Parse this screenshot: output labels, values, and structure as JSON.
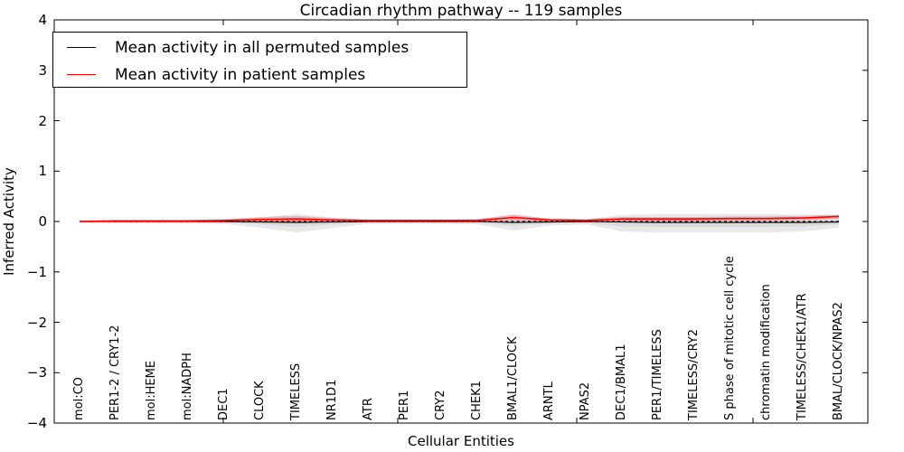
{
  "legend": {
    "items": [
      {
        "label": "Mean activity in all permuted samples",
        "color": "#000000"
      },
      {
        "label": "Mean activity in patient samples",
        "color": "#ff0000"
      }
    ]
  },
  "chart_data": {
    "type": "line",
    "title": "Circadian rhythm pathway -- 119 samples",
    "xlabel": "Cellular Entities",
    "ylabel": "Inferred Activity",
    "ylim": [
      -4,
      4
    ],
    "yticks": [
      -4,
      -3,
      -2,
      -1,
      0,
      1,
      2,
      3,
      4
    ],
    "ytick_labels": [
      "−4",
      "−3",
      "−2",
      "−1",
      "0",
      "1",
      "2",
      "3",
      "4"
    ],
    "grid": false,
    "legend_position": "upper left",
    "categories": [
      "mol:CO",
      "PER1-2 / CRY1-2",
      "mol:HEME",
      "mol:NADPH",
      "DEC1",
      "CLOCK",
      "TIMELESS",
      "NR1D1",
      "ATR",
      "PER1",
      "CRY2",
      "CHEK1",
      "BMAL1/CLOCK",
      "ARNTL",
      "NPAS2",
      "DEC1/BMAL1",
      "PER1/TIMELESS",
      "TIMELESS/CRY2",
      "S phase of mitotic cell cycle",
      "chromatin modification",
      "TIMELESS/CHEK1/ATR",
      "BMAL/CLOCK/NPAS2"
    ],
    "series": [
      {
        "name": "Mean activity in all permuted samples",
        "color": "#000000",
        "style": "solid",
        "values": [
          0.0,
          0.0,
          0.0,
          0.0,
          0.0,
          -0.01,
          -0.02,
          -0.01,
          0.0,
          0.0,
          0.0,
          0.0,
          -0.02,
          -0.01,
          0.0,
          -0.01,
          -0.02,
          -0.02,
          -0.02,
          -0.02,
          -0.02,
          -0.01
        ]
      },
      {
        "name": "Mean activity in patient samples",
        "color": "#ff0000",
        "style": "solid",
        "values": [
          0.0,
          0.01,
          0.01,
          0.01,
          0.02,
          0.04,
          0.05,
          0.03,
          0.02,
          0.02,
          0.02,
          0.02,
          0.08,
          0.03,
          0.02,
          0.05,
          0.05,
          0.05,
          0.06,
          0.06,
          0.07,
          0.1
        ]
      }
    ],
    "bands": [
      {
        "name": "permuted-envelope-outer",
        "color": "#e9e9e9",
        "upper": [
          0.02,
          0.03,
          0.03,
          0.03,
          0.04,
          0.08,
          0.15,
          0.08,
          0.04,
          0.04,
          0.04,
          0.05,
          0.13,
          0.06,
          0.05,
          0.13,
          0.15,
          0.15,
          0.15,
          0.15,
          0.14,
          0.13
        ],
        "lower": [
          -0.03,
          -0.04,
          -0.04,
          -0.04,
          -0.05,
          -0.12,
          -0.22,
          -0.13,
          -0.05,
          -0.05,
          -0.05,
          -0.06,
          -0.18,
          -0.08,
          -0.06,
          -0.2,
          -0.22,
          -0.22,
          -0.22,
          -0.22,
          -0.2,
          -0.12
        ]
      },
      {
        "name": "permuted-envelope-inner",
        "color": "#dadada",
        "upper": [
          0.01,
          0.015,
          0.015,
          0.015,
          0.02,
          0.04,
          0.07,
          0.04,
          0.02,
          0.02,
          0.02,
          0.025,
          0.06,
          0.03,
          0.025,
          0.06,
          0.07,
          0.07,
          0.07,
          0.07,
          0.07,
          0.06
        ],
        "lower": [
          -0.015,
          -0.02,
          -0.02,
          -0.02,
          -0.025,
          -0.06,
          -0.11,
          -0.06,
          -0.025,
          -0.025,
          -0.025,
          -0.03,
          -0.09,
          -0.04,
          -0.03,
          -0.1,
          -0.11,
          -0.11,
          -0.11,
          -0.11,
          -0.1,
          -0.06
        ]
      },
      {
        "name": "patient-envelope",
        "color": "#ff0000",
        "opacity": 0.22,
        "upper": [
          0.02,
          0.03,
          0.03,
          0.03,
          0.05,
          0.09,
          0.11,
          0.07,
          0.04,
          0.04,
          0.04,
          0.05,
          0.14,
          0.06,
          0.05,
          0.09,
          0.09,
          0.09,
          0.1,
          0.1,
          0.11,
          0.14
        ],
        "lower": [
          -0.02,
          -0.01,
          -0.01,
          -0.01,
          -0.01,
          -0.01,
          -0.01,
          -0.01,
          0.0,
          0.0,
          0.0,
          -0.01,
          0.02,
          0.0,
          -0.01,
          0.01,
          0.01,
          0.01,
          0.02,
          0.02,
          0.03,
          0.06
        ]
      }
    ],
    "reference_line": {
      "value": 0,
      "style": "dashed",
      "color": "#000000"
    }
  }
}
